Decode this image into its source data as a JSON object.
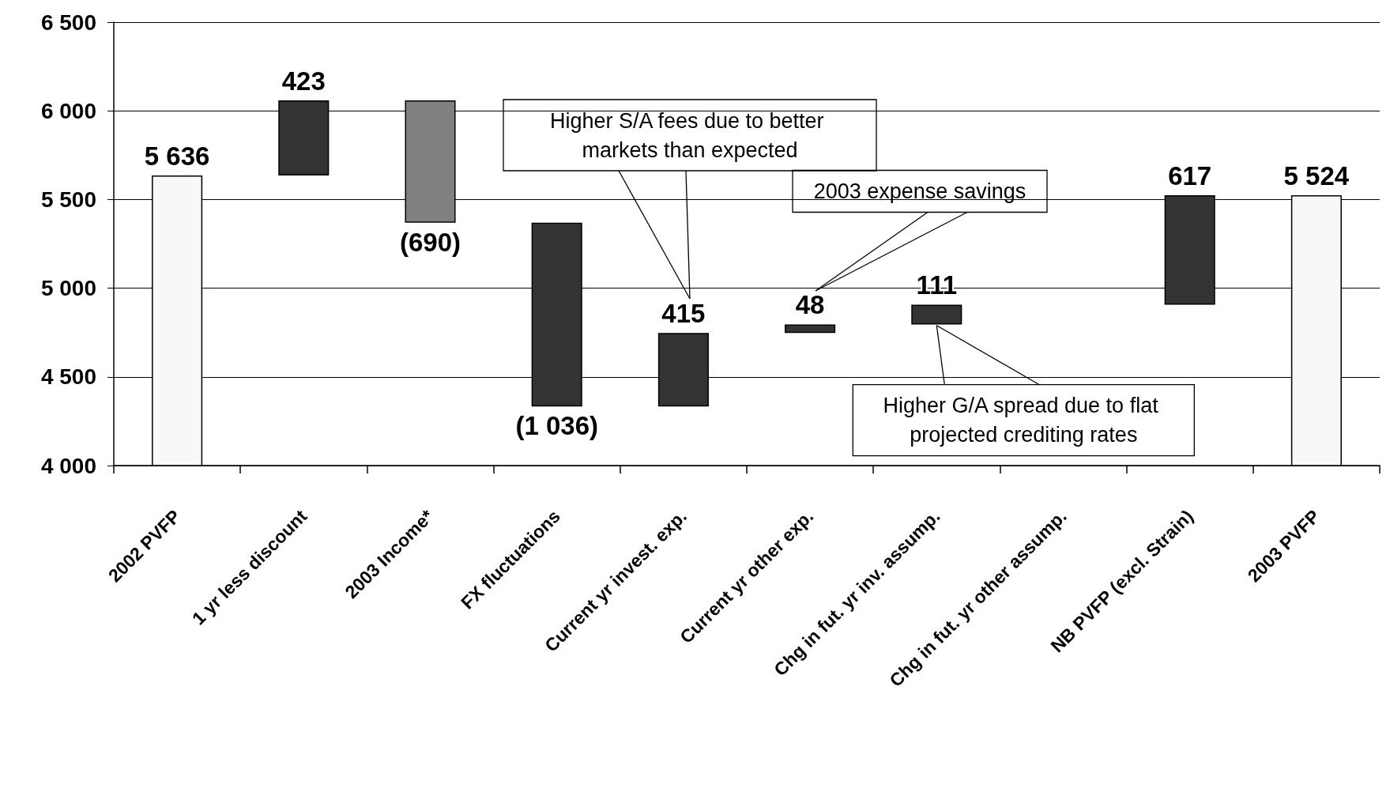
{
  "chart_data": {
    "type": "bar",
    "categories": [
      "2002 PVFP",
      "1 yr less discount",
      "2003 Income*",
      "FX fluctuations",
      "Current yr invest. exp.",
      "Current yr other exp.",
      "Chg in fut. yr inv. assump.",
      "Chg in fut. yr other assump.",
      "NB PVFP (excl. Strain)",
      "2003 PVFP"
    ],
    "values": [
      5636,
      423,
      -690,
      -1036,
      415,
      48,
      111,
      null,
      617,
      5524
    ],
    "base": [
      0,
      5636,
      6059,
      5369,
      4333,
      4748,
      4796,
      null,
      4907,
      0
    ],
    "colors": [
      "#f8f8f8",
      "#333333",
      "#808080",
      "#333333",
      "#333333",
      "#333333",
      "#333333",
      "#333333",
      "#333333",
      "#f8f8f8"
    ],
    "value_labels": [
      "5 636",
      "423",
      "(690)",
      "(1 036)",
      "415",
      "48",
      "111",
      null,
      "617",
      "5 524"
    ],
    "ylim": [
      4000,
      6500
    ],
    "yticks": [
      {
        "value": 4000,
        "label": "4 000"
      },
      {
        "value": 4500,
        "label": "4 500"
      },
      {
        "value": 5000,
        "label": "5 000"
      },
      {
        "value": 5500,
        "label": "5 500"
      },
      {
        "value": 6000,
        "label": "6 000"
      },
      {
        "value": 6500,
        "label": "6 500"
      }
    ],
    "grid": true,
    "annotations": [
      "Higher S/A fees due to better markets than expected",
      "2003 expense savings",
      {
        "text": "Higher G/A spread due to flat projected crediting rates",
        "x": "Chg in fut. yr inv. assump.",
        "y": 4790
      }
    ]
  }
}
